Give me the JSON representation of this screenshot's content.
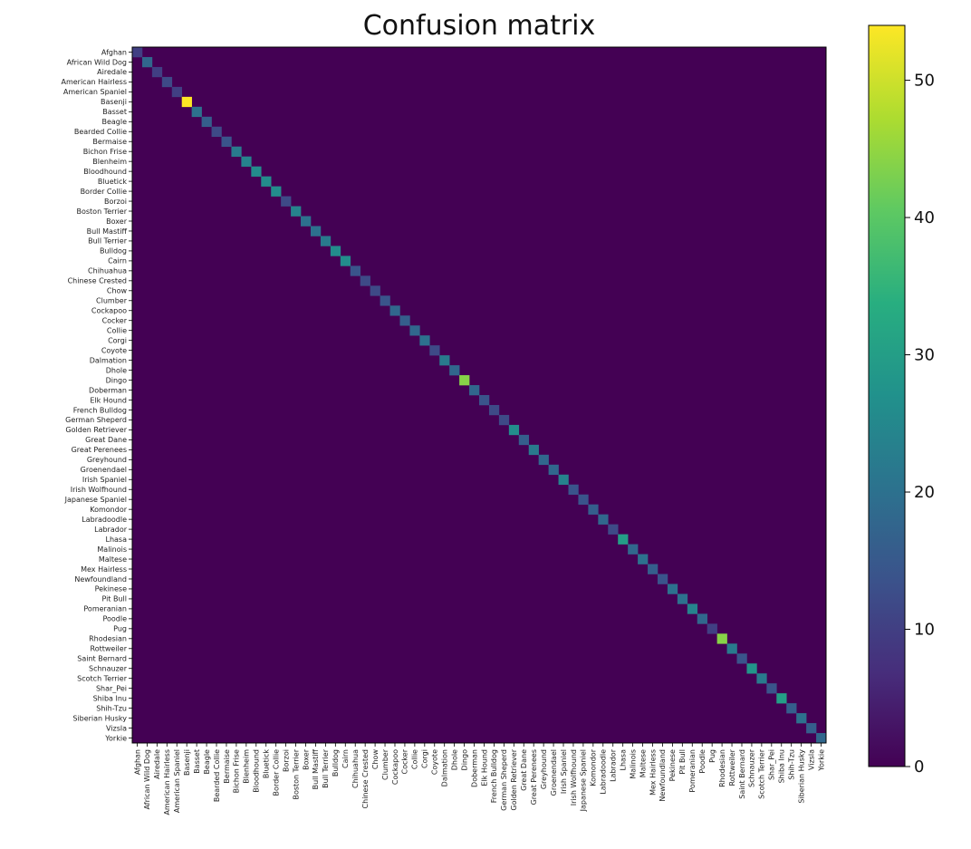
{
  "chart_data": {
    "type": "heatmap",
    "title": "Confusion matrix",
    "xlabel": "",
    "ylabel": "",
    "colormap": "viridis",
    "color_range": [
      0,
      54
    ],
    "colorbar_ticks": [
      0,
      10,
      20,
      30,
      40,
      50
    ],
    "categories": [
      "Afghan",
      "African Wild Dog",
      "Airedale",
      "American Hairless",
      "American Spaniel",
      "Basenji",
      "Basset",
      "Beagle",
      "Bearded Collie",
      "Bermaise",
      "Bichon Frise",
      "Blenheim",
      "Bloodhound",
      "Bluetick",
      "Border Collie",
      "Borzoi",
      "Boston Terrier",
      "Boxer",
      "Bull Mastiff",
      "Bull Terrier",
      "Bulldog",
      "Cairn",
      "Chihuahua",
      "Chinese Crested",
      "Chow",
      "Clumber",
      "Cockapoo",
      "Cocker",
      "Collie",
      "Corgi",
      "Coyote",
      "Dalmation",
      "Dhole",
      "Dingo",
      "Doberman",
      "Elk Hound",
      "French Bulldog",
      "German Sheperd",
      "Golden Retriever",
      "Great Dane",
      "Great Perenees",
      "Greyhound",
      "Groenendael",
      "Irish Spaniel",
      "Irish Wolfhound",
      "Japanese Spaniel",
      "Komondor",
      "Labradoodle",
      "Labrador",
      "Lhasa",
      "Malinois",
      "Maltese",
      "Mex Hairless",
      "Newfoundland",
      "Pekinese",
      "Pit Bull",
      "Pomeranian",
      "Poodle",
      "Pug",
      "Rhodesian",
      "Rottweiler",
      "Saint Bernard",
      "Schnauzer",
      "Scotch Terrier",
      "Shar_Pei",
      "Shiba Inu",
      "Shih-Tzu",
      "Siberian Husky",
      "Vizsla",
      "Yorkie"
    ],
    "diagonal_values": [
      10,
      18,
      10,
      12,
      10,
      54,
      20,
      16,
      12,
      14,
      22,
      24,
      26,
      26,
      26,
      12,
      24,
      20,
      20,
      22,
      26,
      26,
      14,
      12,
      12,
      14,
      18,
      16,
      18,
      20,
      12,
      22,
      18,
      44,
      18,
      14,
      12,
      12,
      26,
      16,
      22,
      18,
      18,
      24,
      14,
      14,
      16,
      18,
      12,
      30,
      18,
      20,
      16,
      14,
      20,
      20,
      24,
      18,
      10,
      44,
      22,
      14,
      28,
      22,
      14,
      30,
      16,
      20,
      16,
      18
    ],
    "off_diagonal_value": 0
  }
}
